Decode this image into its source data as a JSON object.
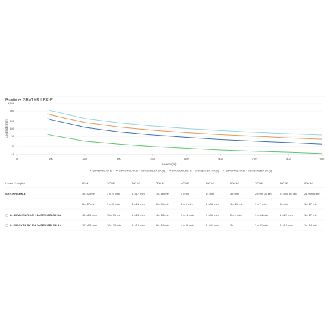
{
  "chart_data": {
    "type": "line",
    "title": "Runtime: SRV1KRILRK-E",
    "x_label": "Laden (W)",
    "y_label": "Looptijd (min)",
    "x": [
      90,
      100,
      200,
      300,
      400,
      500,
      600,
      700,
      800,
      900
    ],
    "series": [
      {
        "name": "SRV1KRILRK-E",
        "color": "#5cc46a",
        "values": [
          61,
          56,
          33,
          25,
          20,
          17,
          14.5,
          13,
          12,
          10.7
        ]
      },
      {
        "name": "SRV1KRILRK-E + SRV36RLBP-9A (1)",
        "color": "#3a6fb7",
        "values": [
          254,
          229,
          114,
          76,
          57,
          46,
          38,
          33,
          29,
          25
        ]
      },
      {
        "name": "SRV1KRILRK-E + SRV36RLBP-9A (2)",
        "color": "#e8964f",
        "values": [
          394,
          355,
          177,
          118,
          89,
          71,
          59,
          51,
          44,
          39
        ]
      },
      {
        "name": "SRV1KRILRK-E + SRV36RLBP-9A (3)",
        "color": "#8fd3e8",
        "values": [
          571,
          514,
          257,
          171,
          128,
          103,
          86,
          73,
          64,
          57
        ]
      }
    ],
    "xlim": [
      0,
      900
    ],
    "xticks": [
      0,
      100,
      200,
      300,
      400,
      500,
      600,
      700,
      800,
      900
    ],
    "ylim": [
      10,
      1000
    ],
    "log_y": true,
    "yticks": [
      {
        "value": 1000,
        "label": "1,000"
      },
      500,
      200,
      100,
      50,
      20,
      10
    ],
    "grid": true
  },
  "table": {
    "header": [
      "Laden / Looptijd",
      "90 W",
      "100 W",
      "200 W",
      "300 W",
      "400 W",
      "500 W",
      "600 W",
      "700 W",
      "800 W",
      "900 W"
    ],
    "rows": [
      [
        "SRV1KRILRK-E",
        "3 u 52 min",
        "3 u 24 min",
        "1 u 17 min",
        "1 u 16 min",
        "57 min",
        "44 min",
        "35 min",
        "29 min 26 sec",
        "24 min 46 sec",
        "21 min 6 sec"
      ],
      [
        null,
        "6 u 17 min",
        "7 u 39 min",
        "4 u 14 min",
        "2 u 31 min",
        "2 u 6 min",
        "1 u 36 min",
        "1 u 21 min",
        "1 u 7 min",
        "56 min",
        "1 u 17 min"
      ],
      [
        "1x SRV1KRILRK-E + 1x SRV36RLBP-9A",
        "12 u 26 min",
        "11 u 31 min",
        "6 u 24 min",
        "4 u 13 min",
        "3 u 12 min",
        "2 u 31 min",
        "2 u 4 min",
        "1 u 44 min",
        "1 u 29 min",
        "1 u 17 min"
      ],
      [
        "1x SRV1KRILRK-E + 2x SRV36RLBP-9A",
        "17 u 57 min",
        "16 u 35 min",
        "9 u 13 min",
        "6 u 14 min",
        "4 u 38 min",
        "3 u 41 min",
        "3 u",
        "2 u 31 min",
        "2 u 10 min",
        "1 u 54 min"
      ]
    ]
  }
}
